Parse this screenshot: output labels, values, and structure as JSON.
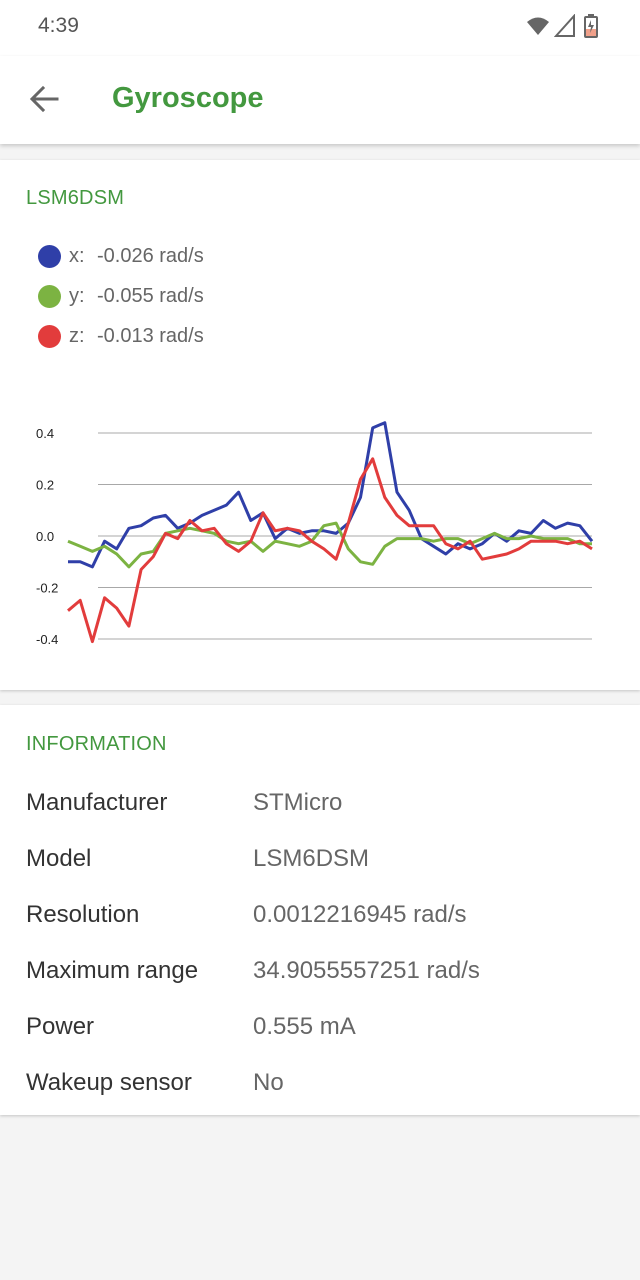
{
  "status_bar": {
    "time": "4:39",
    "icons": [
      "wifi-icon",
      "cell-signal-icon",
      "battery-charging-icon"
    ]
  },
  "app_bar": {
    "back_icon": "arrow-back-icon",
    "title": "Gyroscope"
  },
  "sensor_card": {
    "title": "LSM6DSM",
    "legend": [
      {
        "axis": "x:",
        "value": "-0.026 rad/s",
        "color": "#2f3fa8"
      },
      {
        "axis": "y:",
        "value": "-0.055 rad/s",
        "color": "#7cb342"
      },
      {
        "axis": "z:",
        "value": "-0.013 rad/s",
        "color": "#e23c3c"
      }
    ]
  },
  "chart_data": {
    "type": "line",
    "yticks": [
      "0.4",
      "0.2",
      "0.0",
      "-0.2",
      "-0.4"
    ],
    "ylim": [
      -0.4,
      0.4
    ],
    "grid": true,
    "series": [
      {
        "name": "x",
        "color": "#2f3fa8",
        "values": [
          -0.1,
          -0.1,
          -0.12,
          -0.02,
          -0.05,
          0.03,
          0.04,
          0.07,
          0.08,
          0.03,
          0.05,
          0.08,
          0.1,
          0.12,
          0.17,
          0.06,
          0.09,
          -0.01,
          0.03,
          0.01,
          0.02,
          0.02,
          0.01,
          0.05,
          0.15,
          0.42,
          0.44,
          0.17,
          0.1,
          -0.01,
          -0.04,
          -0.07,
          -0.03,
          -0.05,
          -0.03,
          0.01,
          -0.02,
          0.02,
          0.01,
          0.06,
          0.03,
          0.05,
          0.04,
          -0.02
        ]
      },
      {
        "name": "y",
        "color": "#7cb342",
        "values": [
          -0.02,
          -0.04,
          -0.06,
          -0.04,
          -0.07,
          -0.12,
          -0.07,
          -0.06,
          0.01,
          0.02,
          0.03,
          0.02,
          0.01,
          -0.02,
          -0.03,
          -0.02,
          -0.06,
          -0.02,
          -0.03,
          -0.04,
          -0.02,
          0.04,
          0.05,
          -0.05,
          -0.1,
          -0.11,
          -0.04,
          -0.01,
          -0.01,
          -0.01,
          -0.02,
          -0.01,
          -0.01,
          -0.03,
          -0.01,
          0.01,
          -0.01,
          -0.01,
          0.0,
          -0.01,
          -0.01,
          -0.01,
          -0.03,
          -0.03
        ]
      },
      {
        "name": "z",
        "color": "#e23c3c",
        "values": [
          -0.29,
          -0.25,
          -0.41,
          -0.24,
          -0.28,
          -0.35,
          -0.13,
          -0.08,
          0.01,
          -0.01,
          0.06,
          0.02,
          0.03,
          -0.03,
          -0.06,
          -0.02,
          0.09,
          0.02,
          0.03,
          0.02,
          -0.02,
          -0.05,
          -0.09,
          0.05,
          0.22,
          0.3,
          0.15,
          0.08,
          0.04,
          0.04,
          0.04,
          -0.03,
          -0.05,
          -0.02,
          -0.09,
          -0.08,
          -0.07,
          -0.05,
          -0.02,
          -0.02,
          -0.02,
          -0.03,
          -0.02,
          -0.05
        ]
      }
    ]
  },
  "info_card": {
    "title": "INFORMATION",
    "rows": [
      {
        "label": "Manufacturer",
        "value": "STMicro"
      },
      {
        "label": "Model",
        "value": "LSM6DSM"
      },
      {
        "label": "Resolution",
        "value": "0.0012216945 rad/s"
      },
      {
        "label": "Maximum range",
        "value": "34.9055557251 rad/s"
      },
      {
        "label": "Power",
        "value": "0.555 mA"
      },
      {
        "label": "Wakeup sensor",
        "value": "No"
      }
    ]
  }
}
